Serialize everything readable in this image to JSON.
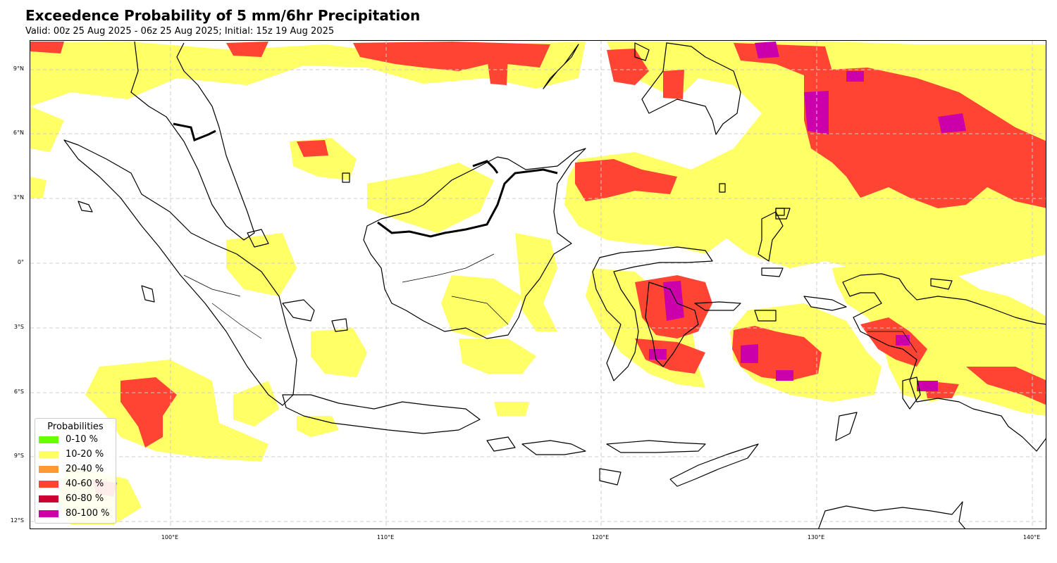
{
  "title": "Exceedence Probability of 5 mm/6hr Precipitation",
  "subtitle": "Valid: 00z 25 Aug 2025 - 06z 25 Aug 2025; Initial: 15z 19 Aug 2025",
  "lat_ticks": [
    "9°N",
    "6°N",
    "3°N",
    "0°",
    "3°S",
    "6°S",
    "9°S",
    "12°S"
  ],
  "lon_ticks": [
    "100°E",
    "110°E",
    "120°E",
    "130°E",
    "140°E"
  ],
  "legend": {
    "title": "Probabilities",
    "items": [
      {
        "label": "0-10 %",
        "color": "#66ff00"
      },
      {
        "label": "10-20 %",
        "color": "#ffff66"
      },
      {
        "label": "20-40 %",
        "color": "#ff9933"
      },
      {
        "label": "40-60 %",
        "color": "#ff4433"
      },
      {
        "label": "60-80 %",
        "color": "#cc0033"
      },
      {
        "label": "80-100 %",
        "color": "#cc00aa"
      }
    ]
  },
  "colors": {
    "yellow": "#ffff66",
    "red": "#ff4433",
    "magenta": "#cc00aa",
    "coast": "#000000",
    "grid": "#cccccc"
  }
}
